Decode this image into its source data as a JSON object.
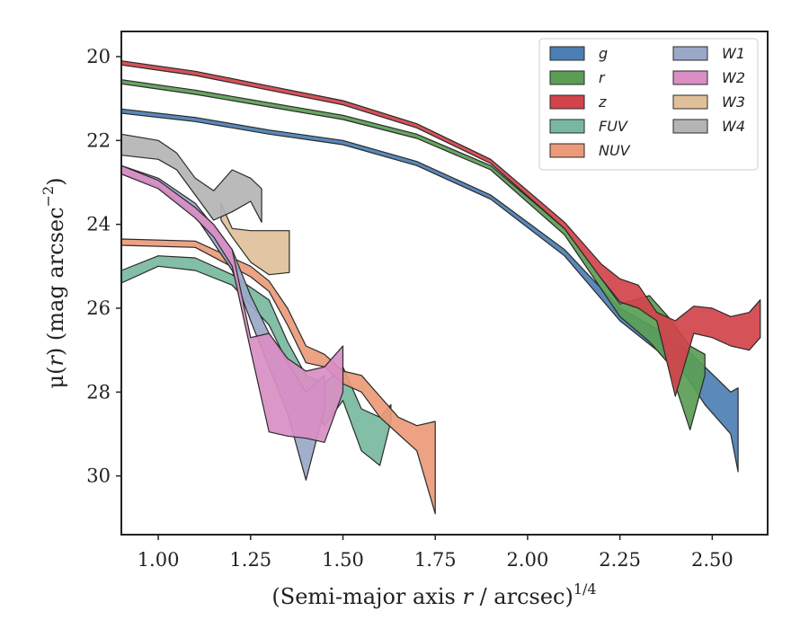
{
  "chart_data": {
    "type": "area",
    "xlabel": "(Semi-major axis r / arcsec)",
    "xlabel_parts": {
      "pre": "(Semi-major axis ",
      "var": "r",
      "post": " / arcsec)",
      "sup": "1/4"
    },
    "ylabel": "μ(r) (mag arcsec−2)",
    "ylabel_parts": {
      "pre": "μ(",
      "var": "r",
      "post": ") (mag arcsec",
      "sup": "−2",
      "close": ")"
    },
    "xlim": [
      0.9,
      2.65
    ],
    "ylim": [
      31.4,
      19.4
    ],
    "y_inverted": true,
    "xticks": [
      1.0,
      1.25,
      1.5,
      1.75,
      2.0,
      2.25,
      2.5
    ],
    "xtick_labels": [
      "1.00",
      "1.25",
      "1.50",
      "1.75",
      "2.00",
      "2.25",
      "2.50"
    ],
    "yticks": [
      20,
      22,
      24,
      26,
      28,
      30
    ],
    "ytick_labels": [
      "20",
      "22",
      "24",
      "26",
      "28",
      "30"
    ],
    "grid": false,
    "legend_position": "top-right",
    "legend_columns": 2,
    "series": [
      {
        "name": "g",
        "color": "#4c7fb4",
        "x": [
          0.9,
          1.1,
          1.3,
          1.5,
          1.7,
          1.9,
          2.1,
          2.25,
          2.35,
          2.42,
          2.48,
          2.55,
          2.57
        ],
        "y_upper": [
          21.25,
          21.45,
          21.75,
          22.0,
          22.5,
          23.3,
          24.6,
          26.0,
          26.5,
          26.9,
          27.4,
          28.0,
          27.9
        ],
        "y_lower": [
          21.35,
          21.55,
          21.85,
          22.1,
          22.6,
          23.4,
          24.75,
          26.3,
          27.0,
          27.5,
          28.3,
          29.0,
          29.9
        ]
      },
      {
        "name": "r",
        "color": "#5a9e55",
        "x": [
          0.9,
          1.1,
          1.3,
          1.5,
          1.7,
          1.9,
          2.1,
          2.25,
          2.33,
          2.38,
          2.44,
          2.48
        ],
        "y_upper": [
          20.55,
          20.8,
          21.1,
          21.4,
          21.85,
          22.6,
          24.1,
          25.9,
          25.7,
          26.2,
          26.9,
          27.1
        ],
        "y_lower": [
          20.65,
          20.9,
          21.2,
          21.5,
          21.95,
          22.7,
          24.25,
          26.2,
          26.8,
          27.3,
          28.9,
          27.6
        ]
      },
      {
        "name": "z",
        "color": "#d3434b",
        "x": [
          0.9,
          1.1,
          1.3,
          1.5,
          1.7,
          1.9,
          2.1,
          2.2,
          2.25,
          2.3,
          2.35,
          2.4,
          2.45,
          2.5,
          2.55,
          2.6,
          2.63
        ],
        "y_upper": [
          20.1,
          20.35,
          20.7,
          21.05,
          21.6,
          22.45,
          23.95,
          24.95,
          25.3,
          25.45,
          26.1,
          26.3,
          25.95,
          26.0,
          26.2,
          26.1,
          25.8
        ],
        "y_lower": [
          20.2,
          20.45,
          20.8,
          21.15,
          21.7,
          22.55,
          24.1,
          25.3,
          25.85,
          26.0,
          26.3,
          28.1,
          26.6,
          26.7,
          26.9,
          27.0,
          26.7
        ]
      },
      {
        "name": "FUV",
        "color": "#78b8a0",
        "x": [
          0.9,
          1.0,
          1.1,
          1.2,
          1.3,
          1.35,
          1.4,
          1.45,
          1.5,
          1.55,
          1.6,
          1.63
        ],
        "y_upper": [
          25.1,
          24.75,
          24.8,
          25.2,
          25.8,
          26.8,
          27.6,
          27.8,
          27.4,
          28.4,
          28.6,
          28.3
        ],
        "y_lower": [
          25.4,
          25.0,
          25.1,
          25.45,
          26.4,
          27.3,
          28.1,
          28.8,
          28.2,
          29.4,
          29.75,
          28.7
        ]
      },
      {
        "name": "NUV",
        "color": "#ea9a78",
        "x": [
          0.9,
          1.1,
          1.25,
          1.3,
          1.35,
          1.4,
          1.45,
          1.5,
          1.55,
          1.6,
          1.65,
          1.7,
          1.75
        ],
        "y_upper": [
          24.35,
          24.4,
          25.0,
          25.35,
          26.0,
          26.9,
          27.1,
          27.5,
          27.6,
          28.1,
          28.6,
          28.8,
          28.7
        ],
        "y_lower": [
          24.5,
          24.55,
          25.25,
          25.6,
          26.4,
          27.3,
          27.4,
          27.8,
          28.0,
          28.6,
          29.0,
          29.4,
          30.9
        ]
      },
      {
        "name": "W1",
        "color": "#9aa8c8",
        "x": [
          0.9,
          1.0,
          1.1,
          1.2,
          1.25,
          1.3,
          1.35,
          1.4,
          1.45
        ],
        "y_upper": [
          22.6,
          22.9,
          23.5,
          24.6,
          25.7,
          26.6,
          27.3,
          28.0,
          27.6
        ],
        "y_lower": [
          22.8,
          23.1,
          23.8,
          25.1,
          26.3,
          27.4,
          28.5,
          30.1,
          28.4
        ]
      },
      {
        "name": "W2",
        "color": "#d98ec4",
        "x": [
          0.9,
          1.0,
          1.1,
          1.15,
          1.2,
          1.25,
          1.3,
          1.35,
          1.4,
          1.45,
          1.5
        ],
        "y_upper": [
          22.6,
          22.95,
          23.6,
          24.0,
          24.6,
          26.7,
          26.6,
          27.2,
          27.5,
          27.4,
          26.9
        ],
        "y_lower": [
          22.8,
          23.15,
          23.85,
          24.3,
          25.0,
          27.0,
          28.95,
          29.05,
          29.1,
          29.2,
          28.0
        ]
      },
      {
        "name": "W3",
        "color": "#e0c09a",
        "x": [
          1.17,
          1.2,
          1.25,
          1.3,
          1.355
        ],
        "y_upper": [
          23.5,
          24.1,
          24.15,
          24.15,
          24.15
        ],
        "y_lower": [
          23.9,
          24.3,
          24.9,
          25.2,
          25.15
        ]
      },
      {
        "name": "W4",
        "color": "#b4b4b4",
        "x": [
          0.9,
          1.0,
          1.05,
          1.1,
          1.15,
          1.2,
          1.25,
          1.28
        ],
        "y_upper": [
          21.85,
          22.0,
          22.3,
          22.9,
          23.2,
          22.7,
          22.9,
          23.15
        ],
        "y_lower": [
          22.35,
          22.45,
          22.7,
          23.3,
          23.9,
          23.7,
          23.45,
          23.95
        ]
      }
    ]
  }
}
